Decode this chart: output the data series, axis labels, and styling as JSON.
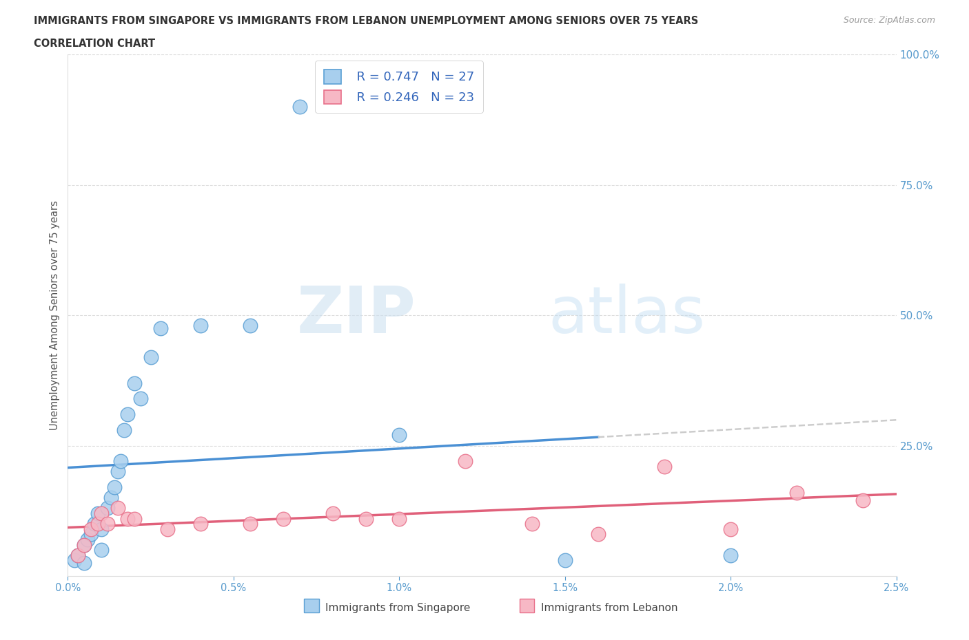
{
  "title_line1": "IMMIGRANTS FROM SINGAPORE VS IMMIGRANTS FROM LEBANON UNEMPLOYMENT AMONG SENIORS OVER 75 YEARS",
  "title_line2": "CORRELATION CHART",
  "source": "Source: ZipAtlas.com",
  "ylabel": "Unemployment Among Seniors over 75 years",
  "y_ticks_right_vals": [
    1.0,
    0.75,
    0.5,
    0.25
  ],
  "y_ticks_right_labels": [
    "100.0%",
    "75.0%",
    "50.0%",
    "25.0%"
  ],
  "singapore_R": 0.747,
  "singapore_N": 27,
  "lebanon_R": 0.246,
  "lebanon_N": 23,
  "singapore_color": "#A8CFEE",
  "lebanon_color": "#F7B8C5",
  "singapore_edge_color": "#5A9FD4",
  "lebanon_edge_color": "#E8708A",
  "singapore_line_color": "#4A90D4",
  "lebanon_line_color": "#E0607A",
  "trend_extend_color": "#CCCCCC",
  "singapore_x": [
    0.0002,
    0.0003,
    0.0005,
    0.0005,
    0.0006,
    0.0007,
    0.0008,
    0.0009,
    0.001,
    0.001,
    0.0012,
    0.0013,
    0.0014,
    0.0015,
    0.0016,
    0.0017,
    0.0018,
    0.002,
    0.0022,
    0.0025,
    0.0028,
    0.004,
    0.0055,
    0.007,
    0.01,
    0.015,
    0.02
  ],
  "singapore_y": [
    0.03,
    0.04,
    0.025,
    0.06,
    0.07,
    0.08,
    0.1,
    0.12,
    0.05,
    0.09,
    0.13,
    0.15,
    0.17,
    0.2,
    0.22,
    0.28,
    0.31,
    0.37,
    0.34,
    0.42,
    0.475,
    0.48,
    0.48,
    0.9,
    0.27,
    0.03,
    0.04
  ],
  "lebanon_x": [
    0.0003,
    0.0005,
    0.0007,
    0.0009,
    0.001,
    0.0012,
    0.0015,
    0.0018,
    0.002,
    0.003,
    0.004,
    0.0055,
    0.0065,
    0.008,
    0.009,
    0.01,
    0.012,
    0.014,
    0.016,
    0.018,
    0.02,
    0.022,
    0.024
  ],
  "lebanon_y": [
    0.04,
    0.06,
    0.09,
    0.1,
    0.12,
    0.1,
    0.13,
    0.11,
    0.11,
    0.09,
    0.1,
    0.1,
    0.11,
    0.12,
    0.11,
    0.11,
    0.22,
    0.1,
    0.08,
    0.21,
    0.09,
    0.16,
    0.145
  ],
  "watermark_zip": "ZIP",
  "watermark_atlas": "atlas",
  "xlim": [
    0.0,
    0.025
  ],
  "ylim": [
    0.0,
    1.0
  ],
  "sg_trend_end_solid": 0.016,
  "sg_trend_end_dashed": 0.025
}
